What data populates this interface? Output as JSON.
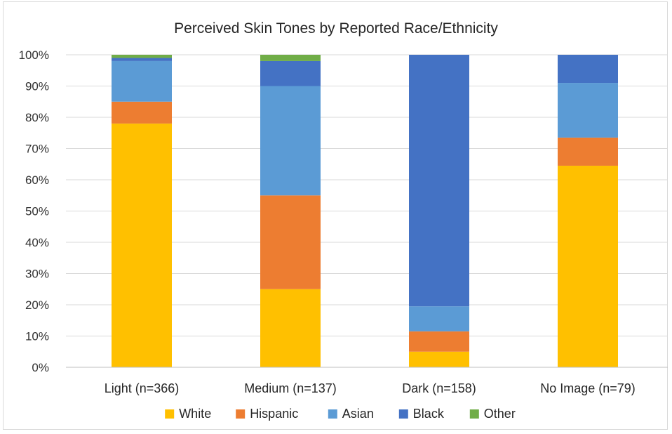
{
  "chart_data": {
    "type": "bar",
    "stacked": true,
    "title": "Perceived Skin Tones by Reported Race/Ethnicity",
    "xlabel": "",
    "ylabel": "",
    "ylim": [
      0,
      100
    ],
    "yticks": [
      "0%",
      "10%",
      "20%",
      "30%",
      "40%",
      "50%",
      "60%",
      "70%",
      "80%",
      "90%",
      "100%"
    ],
    "grid": true,
    "legend": "bottom",
    "categories": [
      "Light (n=366)",
      "Medium (n=137)",
      "Dark (n=158)",
      "No Image (n=79)"
    ],
    "series": [
      {
        "name": "White",
        "color": "#FFC000",
        "values": [
          78,
          25,
          5,
          64.5
        ]
      },
      {
        "name": "Hispanic",
        "color": "#ED7D31",
        "values": [
          7,
          30,
          6.5,
          9
        ]
      },
      {
        "name": "Asian",
        "color": "#5B9BD5",
        "values": [
          13,
          35,
          8,
          17.5
        ]
      },
      {
        "name": "Black",
        "color": "#4472C4",
        "values": [
          1,
          8,
          80.5,
          9
        ]
      },
      {
        "name": "Other",
        "color": "#70AD47",
        "values": [
          1,
          2,
          0,
          0
        ]
      }
    ]
  }
}
